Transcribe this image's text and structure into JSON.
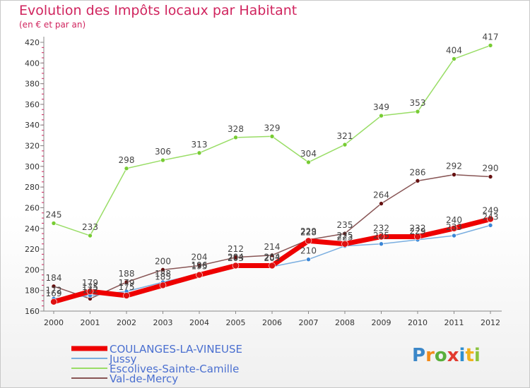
{
  "title": "Evolution des Impôts locaux par Habitant",
  "subtitle": "(en € et par an)",
  "logo_text": "Proxiti",
  "chart_data": {
    "type": "line",
    "title": "Evolution des Impôts locaux par Habitant",
    "subtitle": "(en € et par an)",
    "xlabel": "",
    "ylabel": "",
    "x": [
      2000,
      2001,
      2002,
      2003,
      2004,
      2005,
      2006,
      2007,
      2008,
      2009,
      2010,
      2011,
      2012
    ],
    "ylim": [
      160,
      420
    ],
    "yticks": [
      160,
      180,
      200,
      220,
      240,
      260,
      280,
      300,
      320,
      340,
      360,
      380,
      400,
      420
    ],
    "grid": false,
    "legend_position": "bottom-left",
    "series": [
      {
        "name": "COULANGES-LA-VINEUSE",
        "color": "#ee0000",
        "marker": "#dd1111",
        "width": 7,
        "values": [
          169,
          179,
          175,
          185,
          195,
          204,
          204,
          228,
          225,
          232,
          232,
          240,
          249
        ]
      },
      {
        "name": "Jussy",
        "color": "#7aaee0",
        "marker": "#3a86d6",
        "width": 1.5,
        "values": [
          172,
          175,
          179,
          188,
          196,
          203,
          203,
          210,
          223,
          225,
          229,
          233,
          243
        ]
      },
      {
        "name": "Escolives-Sainte-Camille",
        "color": "#99dd66",
        "marker": "#77cc33",
        "width": 1.5,
        "values": [
          245,
          233,
          298,
          306,
          313,
          328,
          329,
          304,
          321,
          349,
          353,
          404,
          417
        ]
      },
      {
        "name": "Val-de-Mercy",
        "color": "#885555",
        "marker": "#661111",
        "width": 1.5,
        "values": [
          184,
          172,
          188,
          200,
          204,
          212,
          214,
          229,
          235,
          264,
          286,
          292,
          290
        ]
      }
    ],
    "data_labels": [
      {
        "series": 3,
        "index": 0,
        "text": "184"
      },
      {
        "series": 1,
        "index": 0,
        "text": "172"
      },
      {
        "series": 0,
        "index": 0,
        "text": "169"
      },
      {
        "series": 0,
        "index": 1,
        "text": "179"
      },
      {
        "series": 1,
        "index": 1,
        "text": "175"
      },
      {
        "series": 3,
        "index": 1,
        "text": "172"
      },
      {
        "series": 3,
        "index": 2,
        "text": "188"
      },
      {
        "series": 1,
        "index": 2,
        "text": "179"
      },
      {
        "series": 0,
        "index": 2,
        "text": "175"
      },
      {
        "series": 3,
        "index": 3,
        "text": "200"
      },
      {
        "series": 1,
        "index": 3,
        "text": "188"
      },
      {
        "series": 0,
        "index": 3,
        "text": "185"
      },
      {
        "series": 3,
        "index": 4,
        "text": "204"
      },
      {
        "series": 1,
        "index": 4,
        "text": "196"
      },
      {
        "series": 0,
        "index": 4,
        "text": "195"
      },
      {
        "series": 3,
        "index": 5,
        "text": "212"
      },
      {
        "series": 0,
        "index": 5,
        "text": "204"
      },
      {
        "series": 1,
        "index": 5,
        "text": "203"
      },
      {
        "series": 3,
        "index": 6,
        "text": "214"
      },
      {
        "series": 0,
        "index": 6,
        "text": "204"
      },
      {
        "series": 1,
        "index": 6,
        "text": "203"
      },
      {
        "series": 3,
        "index": 7,
        "text": "229"
      },
      {
        "series": 0,
        "index": 7,
        "text": "228"
      },
      {
        "series": 1,
        "index": 7,
        "text": "210"
      },
      {
        "series": 3,
        "index": 8,
        "text": "235"
      },
      {
        "series": 0,
        "index": 8,
        "text": "225"
      },
      {
        "series": 1,
        "index": 8,
        "text": "223"
      },
      {
        "series": 3,
        "index": 9,
        "text": "264"
      },
      {
        "series": 0,
        "index": 9,
        "text": "232"
      },
      {
        "series": 1,
        "index": 9,
        "text": "225"
      },
      {
        "series": 3,
        "index": 10,
        "text": "286"
      },
      {
        "series": 0,
        "index": 10,
        "text": "232"
      },
      {
        "series": 1,
        "index": 10,
        "text": "229"
      },
      {
        "series": 3,
        "index": 11,
        "text": "292"
      },
      {
        "series": 0,
        "index": 11,
        "text": "240"
      },
      {
        "series": 1,
        "index": 11,
        "text": "233"
      },
      {
        "series": 3,
        "index": 12,
        "text": "290"
      },
      {
        "series": 0,
        "index": 12,
        "text": "249"
      },
      {
        "series": 1,
        "index": 12,
        "text": "243"
      },
      {
        "series": 2,
        "index": 0,
        "text": "245"
      },
      {
        "series": 2,
        "index": 1,
        "text": "233"
      },
      {
        "series": 2,
        "index": 2,
        "text": "298"
      },
      {
        "series": 2,
        "index": 3,
        "text": "306"
      },
      {
        "series": 2,
        "index": 4,
        "text": "313"
      },
      {
        "series": 2,
        "index": 5,
        "text": "328"
      },
      {
        "series": 2,
        "index": 6,
        "text": "329"
      },
      {
        "series": 2,
        "index": 7,
        "text": "304"
      },
      {
        "series": 2,
        "index": 8,
        "text": "321"
      },
      {
        "series": 2,
        "index": 9,
        "text": "349"
      },
      {
        "series": 2,
        "index": 10,
        "text": "353"
      },
      {
        "series": 2,
        "index": 11,
        "text": "404"
      },
      {
        "series": 2,
        "index": 12,
        "text": "417"
      }
    ]
  }
}
